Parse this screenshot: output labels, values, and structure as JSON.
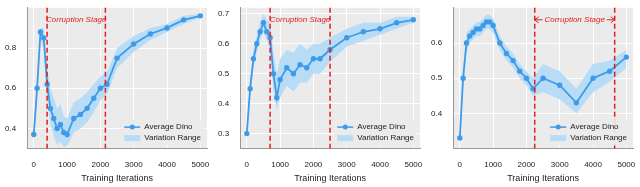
{
  "chart_data": [
    {
      "type": "line",
      "x_label": "Training Iterations",
      "x": [
        0,
        100,
        200,
        300,
        400,
        500,
        600,
        700,
        800,
        900,
        1000,
        1200,
        1400,
        1600,
        1800,
        2000,
        2200,
        2500,
        3000,
        3500,
        4000,
        4500,
        5000
      ],
      "xlim": [
        -200,
        5200
      ],
      "xticks": [
        0,
        1000,
        2000,
        3000,
        4000,
        5000
      ],
      "ylim": [
        0.3,
        1.0
      ],
      "yticks": [
        0.4,
        0.6,
        0.8
      ],
      "grid": true,
      "legend": "lower right",
      "series": [
        {
          "name": "Average Dino",
          "color": "#3d9be9",
          "marker": "circle",
          "values": [
            0.37,
            0.6,
            0.88,
            0.85,
            0.62,
            0.5,
            0.45,
            0.4,
            0.42,
            0.38,
            0.37,
            0.45,
            0.47,
            0.5,
            0.55,
            0.6,
            0.62,
            0.75,
            0.82,
            0.87,
            0.9,
            0.94,
            0.96
          ]
        },
        {
          "name": "Variation Range",
          "type": "area",
          "color": "#b9dcf6",
          "lower": [
            0.34,
            0.55,
            0.84,
            0.8,
            0.55,
            0.42,
            0.36,
            0.32,
            0.33,
            0.31,
            0.31,
            0.38,
            0.4,
            0.43,
            0.48,
            0.54,
            0.57,
            0.7,
            0.78,
            0.84,
            0.88,
            0.92,
            0.95
          ],
          "upper": [
            0.4,
            0.65,
            0.9,
            0.9,
            0.7,
            0.6,
            0.55,
            0.5,
            0.52,
            0.46,
            0.45,
            0.53,
            0.55,
            0.58,
            0.62,
            0.66,
            0.68,
            0.8,
            0.86,
            0.9,
            0.92,
            0.96,
            0.97
          ]
        }
      ],
      "annotations": [
        {
          "text": "Corruption Stage",
          "x_start": 400,
          "x_end": 2150,
          "color": "#e02020",
          "line_style": "dashed"
        }
      ]
    },
    {
      "type": "line",
      "x_label": "Training Iterations",
      "x": [
        0,
        100,
        200,
        300,
        400,
        500,
        600,
        700,
        800,
        900,
        1000,
        1200,
        1400,
        1600,
        1800,
        2000,
        2200,
        2500,
        3000,
        3500,
        4000,
        4500,
        5000
      ],
      "xlim": [
        -200,
        5200
      ],
      "xticks": [
        0,
        1000,
        2000,
        3000,
        4000,
        5000
      ],
      "ylim": [
        0.25,
        0.72
      ],
      "yticks": [
        0.3,
        0.4,
        0.5,
        0.6,
        0.7
      ],
      "grid": true,
      "legend": "lower right",
      "series": [
        {
          "name": "Average Dino",
          "color": "#3d9be9",
          "marker": "circle",
          "values": [
            0.3,
            0.45,
            0.55,
            0.6,
            0.64,
            0.67,
            0.64,
            0.62,
            0.5,
            0.42,
            0.48,
            0.52,
            0.5,
            0.53,
            0.52,
            0.55,
            0.55,
            0.58,
            0.62,
            0.64,
            0.65,
            0.67,
            0.68
          ]
        },
        {
          "name": "Variation Range",
          "type": "area",
          "color": "#b9dcf6",
          "lower": [
            0.28,
            0.42,
            0.52,
            0.57,
            0.61,
            0.64,
            0.61,
            0.58,
            0.44,
            0.38,
            0.42,
            0.46,
            0.44,
            0.47,
            0.47,
            0.5,
            0.5,
            0.54,
            0.59,
            0.61,
            0.63,
            0.65,
            0.67
          ],
          "upper": [
            0.32,
            0.48,
            0.58,
            0.63,
            0.67,
            0.7,
            0.68,
            0.67,
            0.57,
            0.5,
            0.55,
            0.58,
            0.57,
            0.6,
            0.58,
            0.6,
            0.6,
            0.62,
            0.65,
            0.67,
            0.67,
            0.69,
            0.69
          ]
        }
      ],
      "annotations": [
        {
          "text": "Corruption Stage",
          "x_start": 700,
          "x_end": 2500,
          "color": "#e02020",
          "line_style": "dashed"
        }
      ]
    },
    {
      "type": "line",
      "x_label": "Training Iterations",
      "x": [
        0,
        100,
        200,
        300,
        400,
        500,
        600,
        700,
        800,
        900,
        1000,
        1200,
        1400,
        1600,
        1800,
        2000,
        2200,
        2500,
        3000,
        3500,
        4000,
        4500,
        5000
      ],
      "xlim": [
        -200,
        5200
      ],
      "xticks": [
        0,
        1000,
        2000,
        3000,
        4000,
        5000
      ],
      "ylim": [
        0.3,
        0.7
      ],
      "yticks": [
        0.4,
        0.5,
        0.6
      ],
      "grid": true,
      "legend": "lower right",
      "series": [
        {
          "name": "Average Dino",
          "color": "#3d9be9",
          "marker": "circle",
          "values": [
            0.33,
            0.5,
            0.6,
            0.62,
            0.63,
            0.64,
            0.64,
            0.65,
            0.66,
            0.66,
            0.65,
            0.6,
            0.57,
            0.55,
            0.52,
            0.5,
            0.47,
            0.5,
            0.48,
            0.43,
            0.5,
            0.52,
            0.56
          ]
        },
        {
          "name": "Variation Range",
          "type": "area",
          "color": "#b9dcf6",
          "lower": [
            0.31,
            0.47,
            0.57,
            0.6,
            0.61,
            0.62,
            0.62,
            0.63,
            0.64,
            0.64,
            0.63,
            0.58,
            0.55,
            0.53,
            0.5,
            0.48,
            0.45,
            0.46,
            0.44,
            0.4,
            0.46,
            0.49,
            0.53
          ],
          "upper": [
            0.35,
            0.53,
            0.63,
            0.64,
            0.65,
            0.66,
            0.66,
            0.67,
            0.68,
            0.68,
            0.67,
            0.62,
            0.59,
            0.57,
            0.54,
            0.52,
            0.5,
            0.54,
            0.52,
            0.47,
            0.54,
            0.55,
            0.58
          ]
        }
      ],
      "annotations": [
        {
          "text": "Corruption Stage",
          "x_start": 2250,
          "x_end": 4650,
          "color": "#e02020",
          "line_style": "dashed"
        }
      ]
    }
  ]
}
